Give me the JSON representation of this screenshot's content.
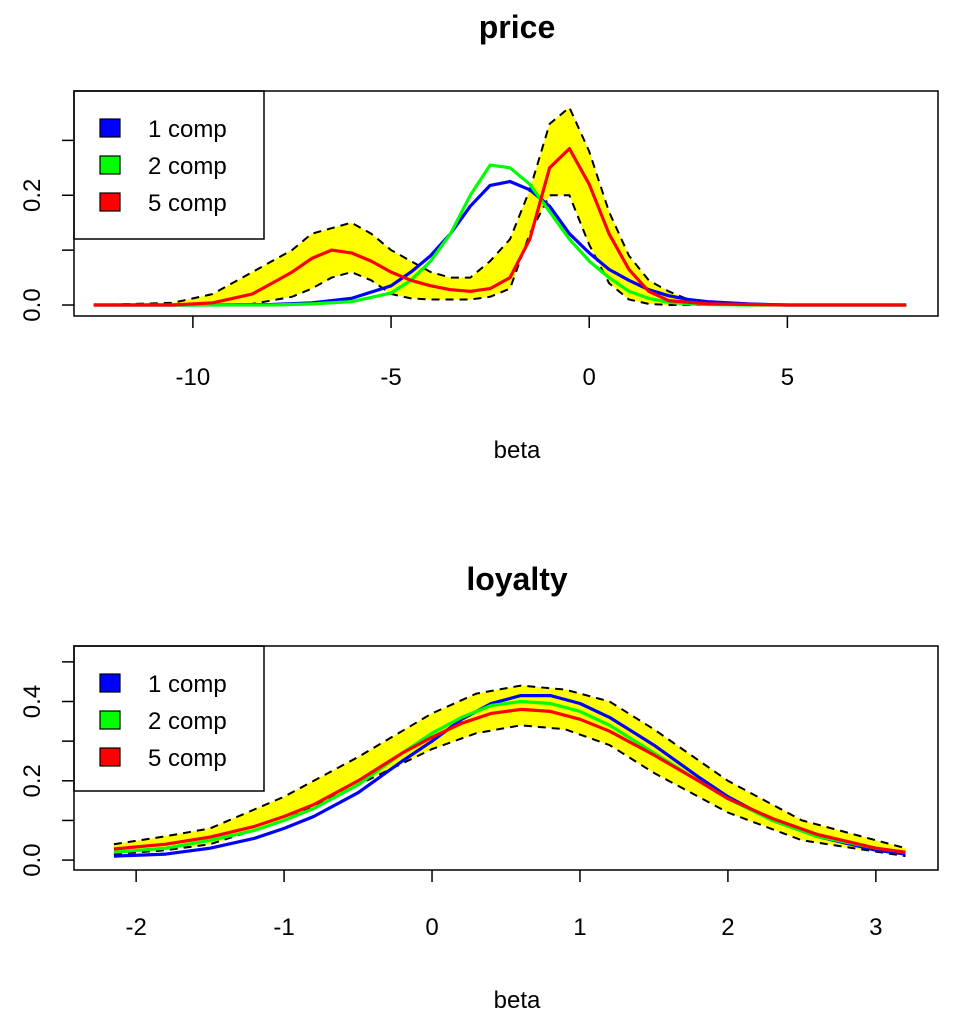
{
  "chart_data": [
    {
      "type": "line",
      "title": "price",
      "xlabel": "beta",
      "ylabel": "",
      "xlim": [
        -13.0,
        8.8
      ],
      "ylim": [
        -0.02,
        0.39
      ],
      "xticks": [
        -10,
        -5,
        0,
        5
      ],
      "xtick_labels": [
        "-10",
        "-5",
        "0",
        "5"
      ],
      "yticks": [
        0.0,
        0.2
      ],
      "ytick_labels": [
        "0.0",
        "0.2"
      ],
      "yticks_minor": [
        0.1,
        0.3
      ],
      "grid": false,
      "legend_position": "top-left",
      "band": {
        "fill": "#ffff00",
        "x": [
          -12.5,
          -10.5,
          -9.5,
          -8.5,
          -7.5,
          -7.0,
          -6.5,
          -6.0,
          -5.5,
          -5.0,
          -4.5,
          -4.0,
          -3.5,
          -3.0,
          -2.5,
          -2.0,
          -1.5,
          -1.0,
          -0.5,
          0.0,
          0.5,
          1.0,
          1.5,
          2.0,
          2.5,
          3.0,
          4.0,
          5.0,
          8.0
        ],
        "lower": [
          0.0,
          0.0,
          0.0,
          0.002,
          0.015,
          0.03,
          0.05,
          0.06,
          0.045,
          0.02,
          0.012,
          0.01,
          0.01,
          0.01,
          0.015,
          0.03,
          0.13,
          0.2,
          0.2,
          0.11,
          0.04,
          0.01,
          0.002,
          0.0,
          0.0,
          0.0,
          0.0,
          0.0,
          0.0
        ],
        "upper": [
          0.0,
          0.004,
          0.02,
          0.06,
          0.1,
          0.13,
          0.14,
          0.15,
          0.13,
          0.1,
          0.08,
          0.06,
          0.05,
          0.05,
          0.08,
          0.12,
          0.21,
          0.33,
          0.36,
          0.28,
          0.17,
          0.09,
          0.045,
          0.025,
          0.01,
          0.005,
          0.002,
          0.0,
          0.0
        ]
      },
      "series": [
        {
          "name": "1 comp",
          "color": "#0000ff",
          "x": [
            -12.5,
            -10.0,
            -8.0,
            -7.0,
            -6.0,
            -5.0,
            -4.5,
            -4.0,
            -3.5,
            -3.0,
            -2.5,
            -2.0,
            -1.5,
            -1.0,
            -0.5,
            0.0,
            0.5,
            1.0,
            1.5,
            2.0,
            2.5,
            3.0,
            4.0,
            5.0,
            8.0
          ],
          "y": [
            0.0,
            0.0,
            0.001,
            0.004,
            0.012,
            0.035,
            0.06,
            0.09,
            0.13,
            0.18,
            0.218,
            0.225,
            0.21,
            0.18,
            0.13,
            0.095,
            0.065,
            0.045,
            0.028,
            0.017,
            0.01,
            0.006,
            0.002,
            0.0,
            0.0
          ]
        },
        {
          "name": "2 comp",
          "color": "#00ff00",
          "x": [
            -12.5,
            -10.0,
            -8.0,
            -7.0,
            -6.0,
            -5.0,
            -4.5,
            -4.0,
            -3.5,
            -3.0,
            -2.5,
            -2.0,
            -1.5,
            -1.0,
            -0.5,
            0.0,
            0.5,
            1.0,
            1.5,
            2.0,
            2.5,
            3.0,
            4.0,
            5.0,
            8.0
          ],
          "y": [
            0.0,
            0.0,
            0.0,
            0.002,
            0.006,
            0.022,
            0.045,
            0.08,
            0.13,
            0.2,
            0.255,
            0.25,
            0.22,
            0.17,
            0.12,
            0.08,
            0.05,
            0.025,
            0.012,
            0.005,
            0.002,
            0.001,
            0.0,
            0.0,
            0.0
          ]
        },
        {
          "name": "5 comp",
          "color": "#ff0000",
          "x": [
            -12.5,
            -10.5,
            -9.5,
            -8.5,
            -8.0,
            -7.5,
            -7.0,
            -6.5,
            -6.0,
            -5.5,
            -5.0,
            -4.5,
            -4.0,
            -3.5,
            -3.0,
            -2.5,
            -2.0,
            -1.5,
            -1.0,
            -0.5,
            0.0,
            0.5,
            1.0,
            1.5,
            2.0,
            3.0,
            5.0,
            8.0
          ],
          "y": [
            0.0,
            0.0,
            0.004,
            0.02,
            0.04,
            0.06,
            0.085,
            0.1,
            0.095,
            0.08,
            0.06,
            0.045,
            0.035,
            0.028,
            0.025,
            0.03,
            0.05,
            0.12,
            0.25,
            0.285,
            0.22,
            0.13,
            0.065,
            0.025,
            0.008,
            0.002,
            0.0,
            0.0
          ]
        }
      ]
    },
    {
      "type": "line",
      "title": "loyalty",
      "xlabel": "beta",
      "ylabel": "",
      "xlim": [
        -2.42,
        3.42
      ],
      "ylim": [
        -0.025,
        0.54
      ],
      "xticks": [
        -2,
        -1,
        0,
        1,
        2,
        3
      ],
      "xtick_labels": [
        "-2",
        "-1",
        "0",
        "1",
        "2",
        "3"
      ],
      "yticks": [
        0.0,
        0.2,
        0.4
      ],
      "ytick_labels": [
        "0.0",
        "0.2",
        "0.4"
      ],
      "yticks_minor": [
        0.1,
        0.3,
        0.5
      ],
      "grid": false,
      "legend_position": "top-left",
      "band": {
        "fill": "#ffff00",
        "x": [
          -2.15,
          -1.8,
          -1.5,
          -1.0,
          -0.5,
          0.0,
          0.3,
          0.6,
          0.9,
          1.2,
          1.5,
          2.0,
          2.5,
          3.2
        ],
        "lower": [
          0.015,
          0.025,
          0.04,
          0.1,
          0.19,
          0.28,
          0.32,
          0.34,
          0.33,
          0.29,
          0.22,
          0.12,
          0.05,
          0.01
        ],
        "upper": [
          0.04,
          0.06,
          0.08,
          0.16,
          0.26,
          0.37,
          0.42,
          0.44,
          0.43,
          0.4,
          0.33,
          0.2,
          0.1,
          0.03
        ]
      },
      "series": [
        {
          "name": "1 comp",
          "color": "#0000ff",
          "x": [
            -2.15,
            -1.8,
            -1.5,
            -1.2,
            -1.0,
            -0.8,
            -0.5,
            -0.2,
            0.0,
            0.2,
            0.4,
            0.6,
            0.8,
            1.0,
            1.2,
            1.5,
            1.8,
            2.0,
            2.3,
            2.6,
            3.0,
            3.2
          ],
          "y": [
            0.01,
            0.015,
            0.03,
            0.055,
            0.08,
            0.11,
            0.17,
            0.25,
            0.3,
            0.355,
            0.395,
            0.415,
            0.415,
            0.395,
            0.36,
            0.29,
            0.21,
            0.16,
            0.1,
            0.06,
            0.025,
            0.015
          ]
        },
        {
          "name": "2 comp",
          "color": "#00ff00",
          "x": [
            -2.15,
            -1.8,
            -1.5,
            -1.2,
            -1.0,
            -0.8,
            -0.5,
            -0.2,
            0.0,
            0.2,
            0.4,
            0.6,
            0.8,
            1.0,
            1.2,
            1.5,
            1.8,
            2.0,
            2.3,
            2.6,
            3.0,
            3.2
          ],
          "y": [
            0.02,
            0.03,
            0.05,
            0.075,
            0.1,
            0.13,
            0.19,
            0.27,
            0.32,
            0.36,
            0.39,
            0.4,
            0.395,
            0.375,
            0.34,
            0.27,
            0.2,
            0.155,
            0.1,
            0.06,
            0.03,
            0.02
          ]
        },
        {
          "name": "5 comp",
          "color": "#ff0000",
          "x": [
            -2.15,
            -1.8,
            -1.5,
            -1.2,
            -1.0,
            -0.8,
            -0.5,
            -0.2,
            0.0,
            0.2,
            0.4,
            0.6,
            0.8,
            1.0,
            1.2,
            1.5,
            1.8,
            2.0,
            2.3,
            2.6,
            3.0,
            3.2
          ],
          "y": [
            0.028,
            0.04,
            0.058,
            0.085,
            0.11,
            0.14,
            0.2,
            0.27,
            0.31,
            0.345,
            0.37,
            0.38,
            0.375,
            0.355,
            0.325,
            0.265,
            0.2,
            0.155,
            0.105,
            0.065,
            0.03,
            0.02
          ]
        }
      ]
    }
  ]
}
